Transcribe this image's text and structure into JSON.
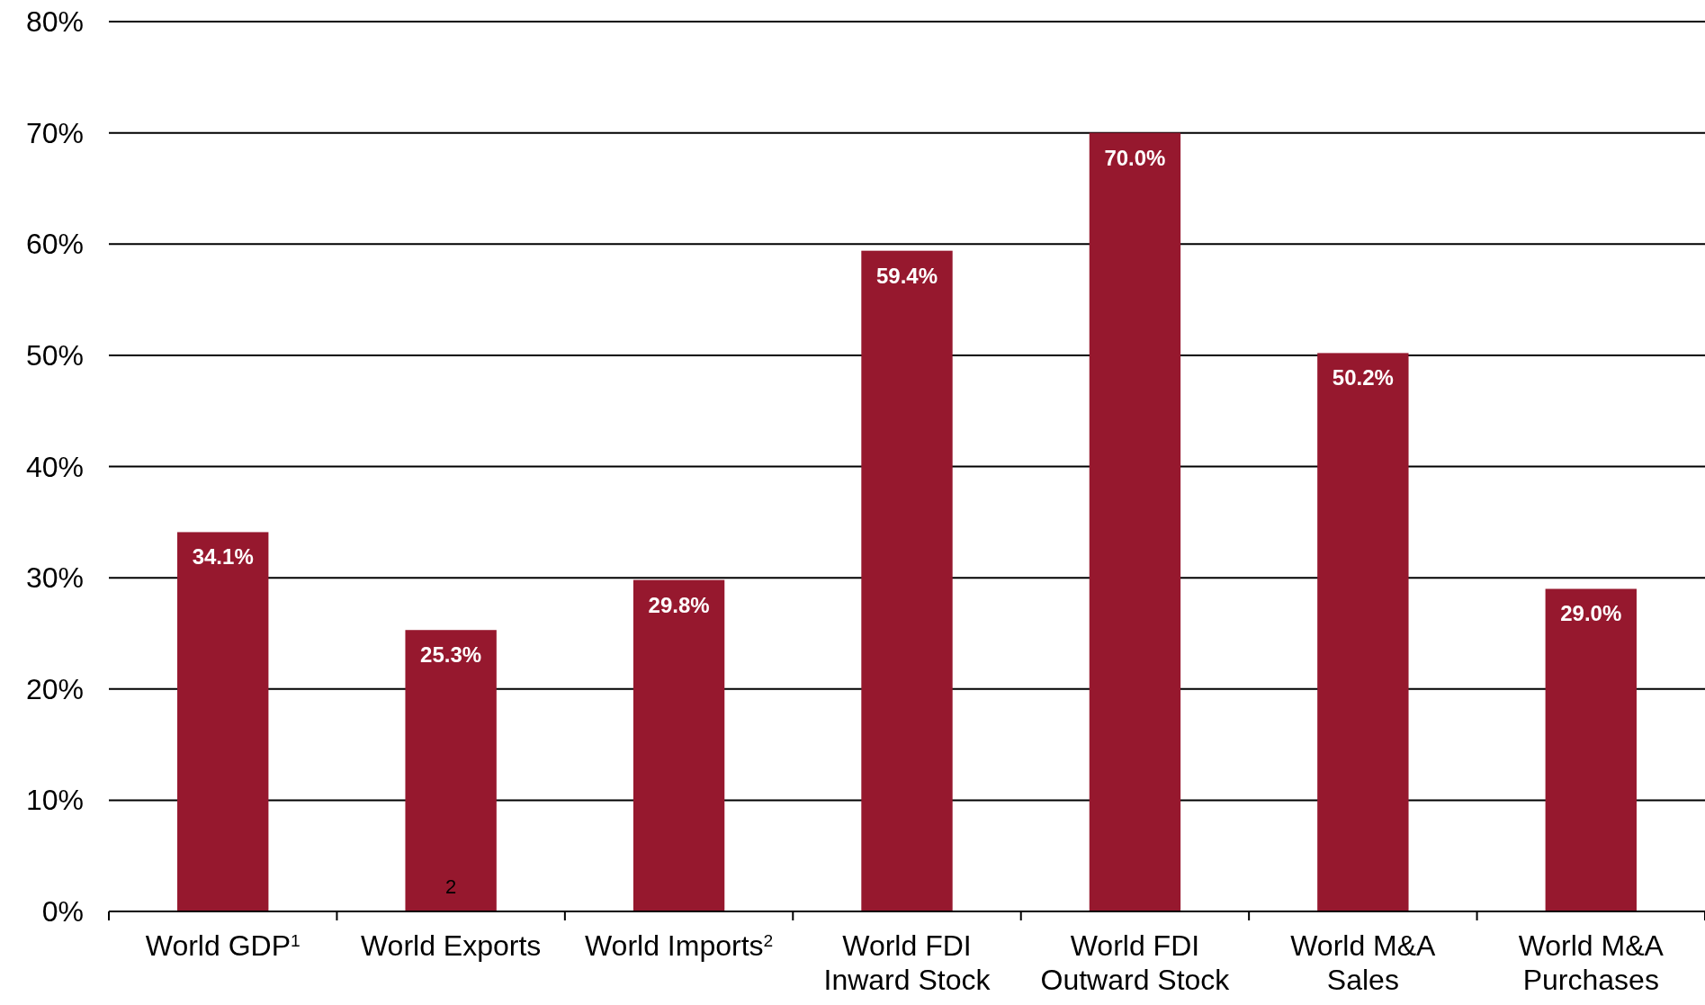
{
  "chart_data": {
    "type": "bar",
    "categories": [
      "World GDP$^{1}$",
      "World Exports",
      "World Imports$^{2}$",
      "World FDI\nInward Stock",
      "World FDI\nOutward Stock",
      "World M&A\nSales",
      "World M&A\nPurchases"
    ],
    "values": [
      34.1,
      25.3,
      29.8,
      59.4,
      70.0,
      50.2,
      29.0
    ],
    "value_labels": [
      "34.1%",
      "25.3%",
      "29.8%",
      "59.4%",
      "70.0%",
      "50.2%",
      "29.0%"
    ],
    "color": "#96182e",
    "ylim": [
      0,
      80
    ],
    "yticks": [
      {
        "value": 0,
        "label": "0%"
      },
      {
        "value": 10,
        "label": "10%"
      },
      {
        "value": 20,
        "label": "20%"
      },
      {
        "value": 30,
        "label": "30%"
      },
      {
        "value": 40,
        "label": "40%"
      },
      {
        "value": 50,
        "label": "50%"
      },
      {
        "value": 60,
        "label": "60%"
      },
      {
        "value": 70,
        "label": "70%"
      },
      {
        "value": 80,
        "label": "80%"
      }
    ],
    "grid": "y",
    "annotations": [
      "2"
    ]
  }
}
